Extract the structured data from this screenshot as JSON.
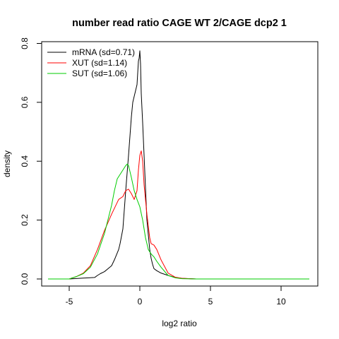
{
  "chart_data": {
    "type": "line",
    "title": "number read ratio CAGE WT 2/CAGE dcp2 1",
    "xlabel": "log2 ratio",
    "ylabel": "density",
    "xlim": [
      -6.95,
      12.6
    ],
    "ylim": [
      -0.024,
      0.806
    ],
    "xticks": [
      -5,
      0,
      5,
      10
    ],
    "xtick_labels": [
      "-5",
      "0",
      "5",
      "10"
    ],
    "yticks": [
      0.0,
      0.2,
      0.4,
      0.6,
      0.8
    ],
    "ytick_labels": [
      "0.0",
      "0.2",
      "0.4",
      "0.6",
      "0.8"
    ],
    "grid": false,
    "legend_position": "top-left",
    "series": [
      {
        "name": "mRNA (sd=0.71)",
        "color": "#000000",
        "x": [
          -6.5,
          -5.0,
          -4.0,
          -3.2,
          -3.0,
          -2.8,
          -2.5,
          -2.0,
          -1.8,
          -1.5,
          -1.4,
          -1.2,
          -1.0,
          -0.8,
          -0.6,
          -0.5,
          -0.4,
          -0.3,
          -0.2,
          -0.15,
          -0.1,
          -0.05,
          0.0,
          0.05,
          0.1,
          0.2,
          0.3,
          0.4,
          0.5,
          0.6,
          0.7,
          0.8,
          0.9,
          1.0,
          1.2,
          1.5,
          2.0,
          2.5,
          3.0,
          4.0,
          12.0
        ],
        "y": [
          0.0,
          0.0,
          0.003,
          0.005,
          0.012,
          0.018,
          0.025,
          0.045,
          0.065,
          0.1,
          0.12,
          0.17,
          0.3,
          0.42,
          0.55,
          0.6,
          0.62,
          0.64,
          0.66,
          0.7,
          0.74,
          0.75,
          0.775,
          0.73,
          0.63,
          0.53,
          0.42,
          0.31,
          0.2,
          0.15,
          0.1,
          0.07,
          0.05,
          0.035,
          0.028,
          0.02,
          0.012,
          0.005,
          0.002,
          0.0,
          0.0
        ]
      },
      {
        "name": "XUT (sd=1.14)",
        "color": "#ff0000",
        "x": [
          -6.5,
          -5.0,
          -4.5,
          -4.0,
          -3.5,
          -3.0,
          -2.5,
          -2.0,
          -1.5,
          -1.2,
          -1.0,
          -0.8,
          -0.6,
          -0.4,
          -0.2,
          -0.1,
          0.0,
          0.1,
          0.2,
          0.3,
          0.5,
          0.7,
          0.8,
          1.0,
          1.2,
          1.5,
          2.0,
          2.5,
          3.0,
          4.0,
          12.0
        ],
        "y": [
          0.0,
          0.0,
          0.008,
          0.02,
          0.045,
          0.1,
          0.165,
          0.22,
          0.27,
          0.28,
          0.3,
          0.305,
          0.29,
          0.27,
          0.3,
          0.37,
          0.42,
          0.435,
          0.4,
          0.32,
          0.22,
          0.14,
          0.12,
          0.115,
          0.1,
          0.065,
          0.02,
          0.006,
          0.002,
          0.0,
          0.0
        ]
      },
      {
        "name": "SUT (sd=1.06)",
        "color": "#00cc00",
        "x": [
          -6.5,
          -5.0,
          -4.5,
          -4.0,
          -3.5,
          -3.0,
          -2.5,
          -2.0,
          -1.8,
          -1.6,
          -1.4,
          -1.2,
          -1.0,
          -0.9,
          -0.8,
          -0.6,
          -0.4,
          -0.2,
          0.0,
          0.2,
          0.4,
          0.6,
          0.8,
          1.0,
          1.2,
          1.5,
          2.0,
          2.5,
          3.0,
          4.0,
          12.0
        ],
        "y": [
          0.0,
          0.0,
          0.008,
          0.018,
          0.04,
          0.085,
          0.155,
          0.25,
          0.3,
          0.34,
          0.355,
          0.37,
          0.385,
          0.39,
          0.385,
          0.345,
          0.3,
          0.27,
          0.245,
          0.2,
          0.14,
          0.1,
          0.085,
          0.075,
          0.06,
          0.04,
          0.012,
          0.004,
          0.001,
          0.0,
          0.0
        ]
      }
    ]
  }
}
